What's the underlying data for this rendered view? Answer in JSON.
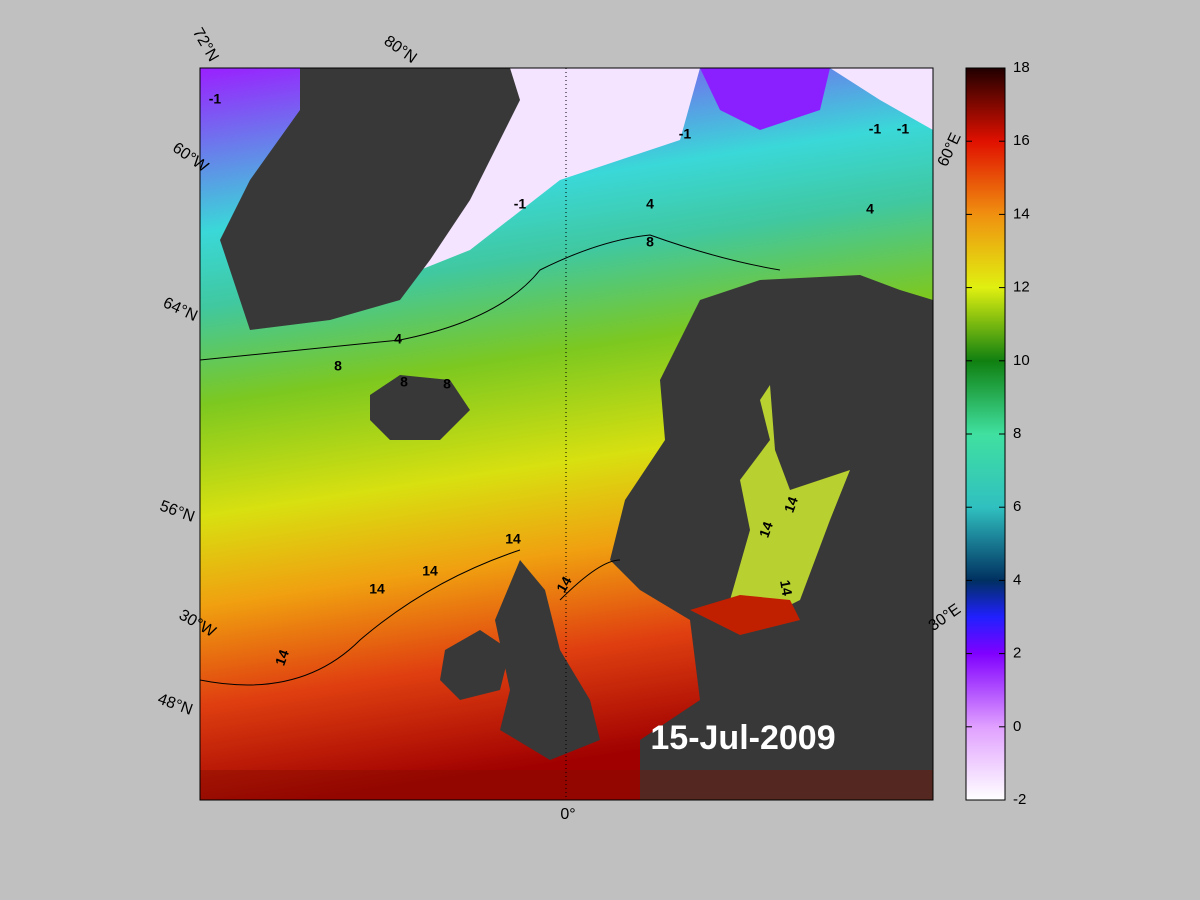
{
  "map": {
    "date": "15-Jul-2009",
    "graticule_labels": [
      "72°N",
      "80°N",
      "60°W",
      "64°N",
      "56°N",
      "30°W",
      "48°N",
      "0°",
      "60°E",
      "30°E"
    ],
    "contour_labels": [
      "-1",
      "-1",
      "-1",
      "-1",
      "-1",
      "4",
      "4",
      "4",
      "8",
      "8",
      "8",
      "8",
      "14",
      "14",
      "14",
      "14",
      "14",
      "14",
      "14",
      "14"
    ]
  },
  "colorbar": {
    "range": [
      -2,
      18
    ],
    "ticks": [
      -2,
      0,
      2,
      4,
      6,
      8,
      10,
      12,
      14,
      16,
      18
    ]
  }
}
